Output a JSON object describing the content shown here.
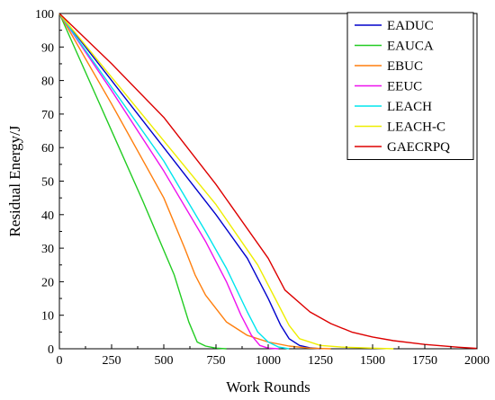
{
  "chart_data": {
    "type": "line",
    "title": "",
    "xlabel": "Work Rounds",
    "ylabel": "Residual Energy/J",
    "xlim": [
      0,
      2000
    ],
    "ylim": [
      0,
      100
    ],
    "xticks": [
      0,
      250,
      500,
      750,
      1000,
      1250,
      1500,
      1750,
      2000
    ],
    "yticks": [
      0,
      10,
      20,
      30,
      40,
      50,
      60,
      70,
      80,
      90,
      100
    ],
    "grid": false,
    "legend_position": "top-right",
    "series": [
      {
        "name": "EADUC",
        "color": "#0000cc",
        "points": [
          [
            0,
            100
          ],
          [
            250,
            80
          ],
          [
            500,
            60
          ],
          [
            750,
            40
          ],
          [
            900,
            27
          ],
          [
            1000,
            15
          ],
          [
            1060,
            7
          ],
          [
            1100,
            3
          ],
          [
            1150,
            1
          ],
          [
            1200,
            0.3
          ],
          [
            1250,
            0
          ]
        ]
      },
      {
        "name": "EAUCA",
        "color": "#22cc22",
        "points": [
          [
            0,
            100
          ],
          [
            200,
            72
          ],
          [
            400,
            44
          ],
          [
            550,
            22
          ],
          [
            620,
            8
          ],
          [
            660,
            2
          ],
          [
            700,
            0.8
          ],
          [
            750,
            0.2
          ],
          [
            800,
            0
          ]
        ]
      },
      {
        "name": "EBUC",
        "color": "#ff7f0e",
        "points": [
          [
            0,
            100
          ],
          [
            250,
            73
          ],
          [
            500,
            45
          ],
          [
            600,
            30
          ],
          [
            650,
            22
          ],
          [
            700,
            16
          ],
          [
            800,
            8
          ],
          [
            900,
            4
          ],
          [
            1000,
            2
          ],
          [
            1100,
            0.8
          ],
          [
            1200,
            0.2
          ],
          [
            1300,
            0
          ]
        ]
      },
      {
        "name": "EEUC",
        "color": "#ee11ee",
        "points": [
          [
            0,
            100
          ],
          [
            250,
            77
          ],
          [
            500,
            53
          ],
          [
            700,
            32
          ],
          [
            800,
            20
          ],
          [
            870,
            10
          ],
          [
            920,
            4
          ],
          [
            960,
            1
          ],
          [
            1000,
            0.2
          ],
          [
            1050,
            0
          ]
        ]
      },
      {
        "name": "LEACH",
        "color": "#00e5ee",
        "points": [
          [
            0,
            100
          ],
          [
            250,
            78
          ],
          [
            500,
            56
          ],
          [
            700,
            35
          ],
          [
            800,
            24
          ],
          [
            900,
            11
          ],
          [
            950,
            5
          ],
          [
            1000,
            2
          ],
          [
            1050,
            0.5
          ],
          [
            1100,
            0
          ]
        ]
      },
      {
        "name": "LEACH-C",
        "color": "#eeee00",
        "points": [
          [
            0,
            100
          ],
          [
            250,
            81
          ],
          [
            500,
            62
          ],
          [
            750,
            43
          ],
          [
            950,
            25
          ],
          [
            1050,
            13
          ],
          [
            1100,
            7
          ],
          [
            1150,
            3
          ],
          [
            1250,
            1
          ],
          [
            1350,
            0.5
          ],
          [
            1500,
            0.2
          ],
          [
            1600,
            0
          ]
        ]
      },
      {
        "name": "GAECRPQ",
        "color": "#dd0000",
        "points": [
          [
            0,
            100
          ],
          [
            250,
            85
          ],
          [
            500,
            69
          ],
          [
            750,
            49
          ],
          [
            1000,
            27
          ],
          [
            1080,
            17.5
          ],
          [
            1200,
            11
          ],
          [
            1300,
            7.5
          ],
          [
            1400,
            5
          ],
          [
            1500,
            3.5
          ],
          [
            1600,
            2.4
          ],
          [
            1750,
            1.3
          ],
          [
            1900,
            0.5
          ],
          [
            2000,
            0.1
          ]
        ]
      }
    ]
  }
}
